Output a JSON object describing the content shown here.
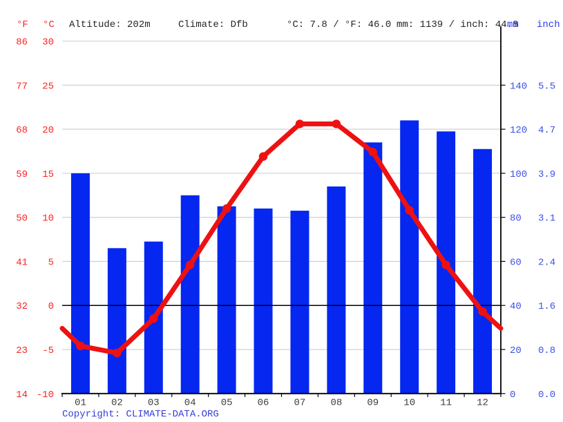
{
  "header": {
    "f_label": "°F",
    "c_label": "°C",
    "altitude": "Altitude: 202m",
    "climate": "Climate: Dfb",
    "temp_summary": "°C: 7.8 / °F: 46.0",
    "precip_summary": "mm: 1139 / inch: 44.8",
    "mm_label": "mm",
    "inch_label": "inch"
  },
  "footer": {
    "copyright": "Copyright: CLIMATE-DATA.ORG"
  },
  "colors": {
    "bar_blue": "#0527f0",
    "line_red": "#ee1111",
    "red_text": "#fb2222",
    "blue_axis_text": "#3d52e2",
    "month_text": "#3d3d3d",
    "gridline": "#cccccc",
    "axis_black": "#000000"
  },
  "chart_data": {
    "type": "bar+line",
    "title": "",
    "categories": [
      "01",
      "02",
      "03",
      "04",
      "05",
      "06",
      "07",
      "08",
      "09",
      "10",
      "11",
      "12"
    ],
    "series": [
      {
        "name": "precipitation",
        "type": "bar",
        "unit": "mm",
        "values": [
          100,
          66,
          69,
          90,
          85,
          84,
          83,
          94,
          114,
          124,
          119,
          111
        ]
      },
      {
        "name": "temperature",
        "type": "line",
        "unit": "°C",
        "values": [
          -4.6,
          -5.4,
          -1.5,
          4.6,
          11.0,
          16.9,
          20.6,
          20.6,
          17.4,
          10.8,
          4.6,
          -0.7
        ],
        "edge_values": {
          "left": -2.6,
          "right": -2.6
        }
      }
    ],
    "axes": {
      "left_f_ticks": [
        "86",
        "77",
        "68",
        "59",
        "50",
        "41",
        "32",
        "23",
        "14"
      ],
      "left_c_ticks": [
        "30",
        "25",
        "20",
        "15",
        "10",
        "5",
        "0",
        "-5",
        "-10"
      ],
      "left_c_numeric": [
        30,
        25,
        20,
        15,
        10,
        5,
        0,
        -5,
        -10
      ],
      "right_mm_ticks": [
        "140",
        "120",
        "100",
        "80",
        "60",
        "40",
        "20",
        "0"
      ],
      "right_mm_numeric": [
        140,
        120,
        100,
        80,
        60,
        40,
        20,
        0
      ],
      "right_inch_ticks": [
        "5.5",
        "4.7",
        "3.9",
        "3.1",
        "2.4",
        "1.6",
        "0.8",
        "0.0"
      ],
      "temp_range_c": [
        -10,
        30
      ],
      "mm_range": [
        0,
        160
      ],
      "zero_line_c": 0,
      "grid": true,
      "legend": "none"
    }
  }
}
